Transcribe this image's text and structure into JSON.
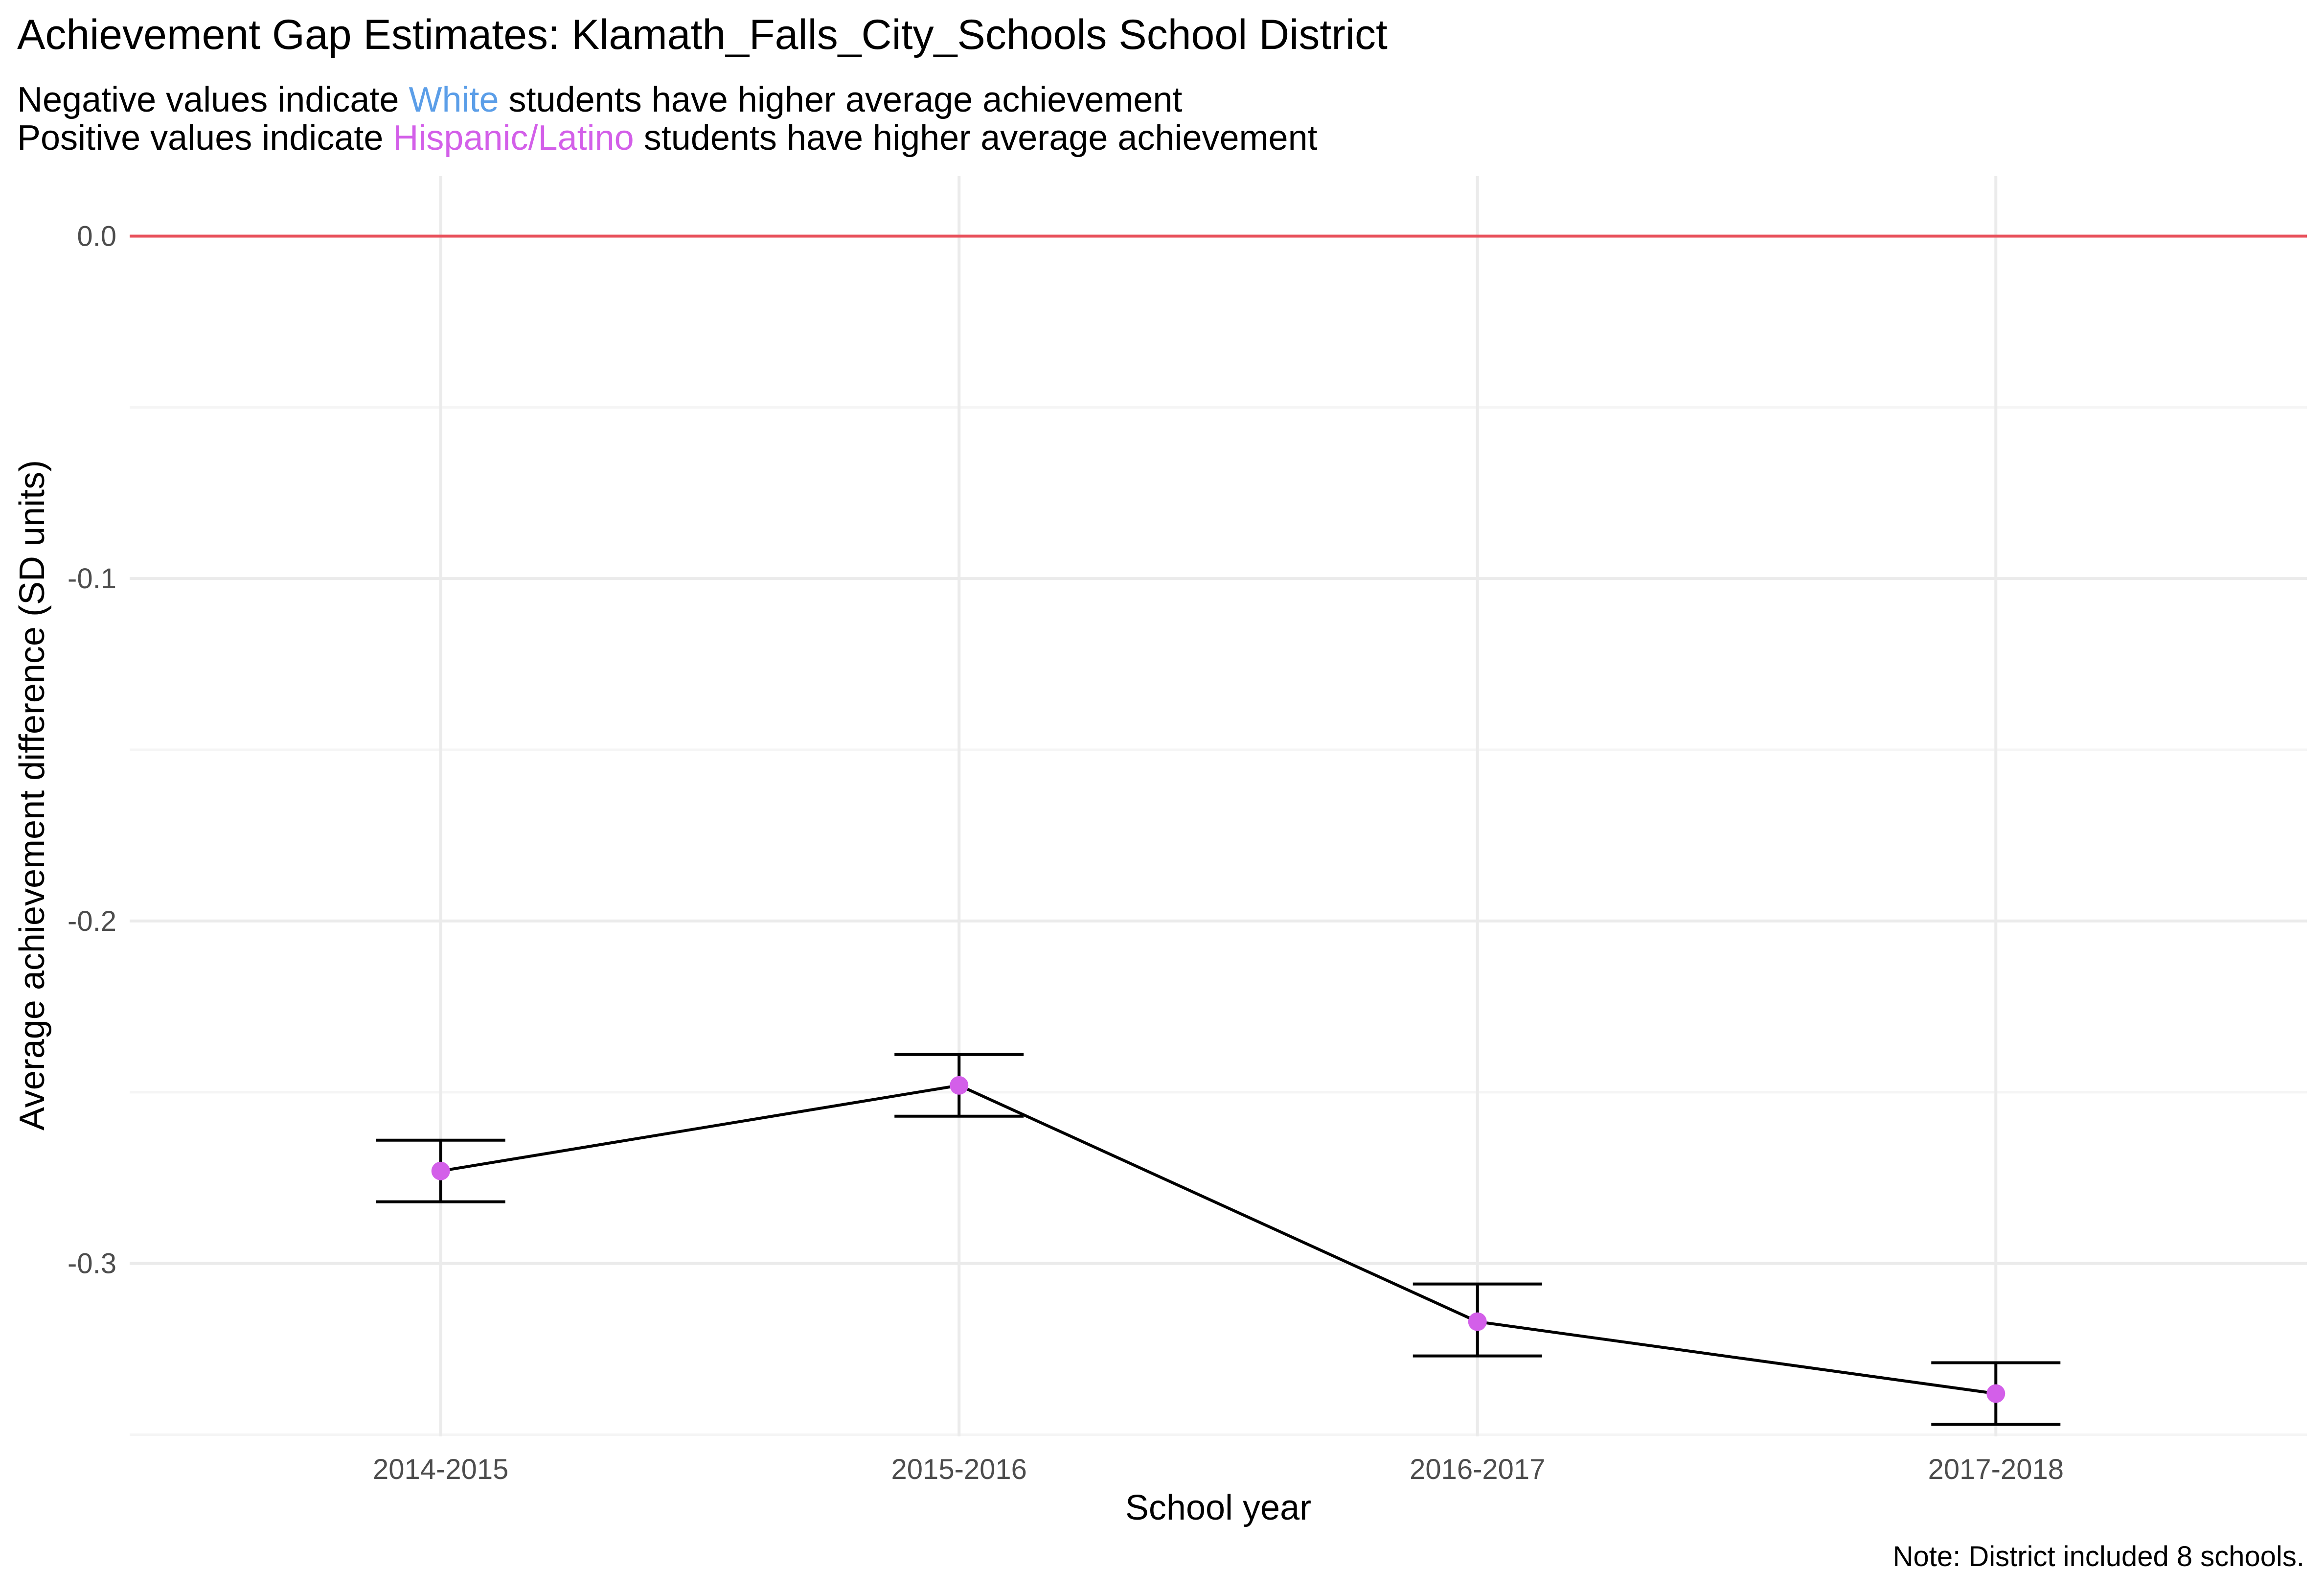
{
  "chart_data": {
    "type": "line",
    "title": "Achievement Gap Estimates: Klamath_Falls_City_Schools  School District",
    "subtitle_lines": [
      {
        "prefix": "Negative values indicate ",
        "group": "White",
        "suffix": " students have higher average achievement"
      },
      {
        "prefix": "Positive values indicate ",
        "group": "Hispanic/Latino",
        "suffix": " students have higher average achievement"
      }
    ],
    "xlabel": "School year",
    "ylabel": "Average achievement difference (SD units)",
    "caption": "Note: District included 8 schools.",
    "categories": [
      "2014-2015",
      "2015-2016",
      "2016-2017",
      "2017-2018"
    ],
    "series": [
      {
        "values": [
          -0.273,
          -0.248,
          -0.317,
          -0.338
        ],
        "lower": [
          -0.282,
          -0.257,
          -0.327,
          -0.347
        ],
        "upper": [
          -0.264,
          -0.239,
          -0.306,
          -0.329
        ]
      }
    ],
    "reference_line": 0.0,
    "yticks": [
      0.0,
      -0.1,
      -0.2,
      -0.3
    ],
    "ytick_labels": [
      "0.0",
      "-0.1",
      "-0.2",
      "-0.3"
    ],
    "ylim": [
      -0.3505,
      0.0175
    ],
    "grid": true,
    "legend": "none",
    "colors": {
      "white_group": "#5b9ee8",
      "hispanic_group": "#d35fe9",
      "point": "#d35fe9",
      "line": "#000000",
      "reference_line": "#e8505b",
      "grid_major": "#ebebeb",
      "grid_minor": "#f5f5f5",
      "tick_text": "#4d4d4d"
    }
  }
}
